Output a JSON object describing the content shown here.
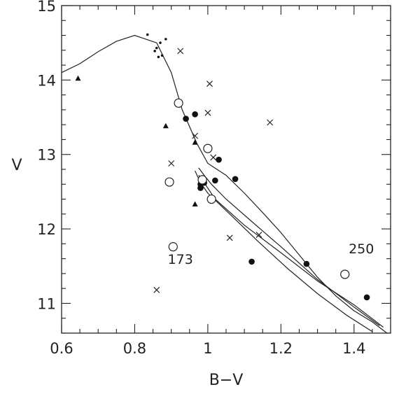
{
  "chart_data": {
    "type": "scatter",
    "xlabel": "B−V",
    "ylabel": "V",
    "xlim": [
      0.6,
      1.5
    ],
    "ylim": [
      15.0,
      10.6
    ],
    "y_inverted": true,
    "grid": false,
    "x_ticks": [
      0.6,
      0.8,
      1.0,
      1.2,
      1.4
    ],
    "x_tick_labels": [
      "0.6",
      "0.8",
      "1",
      "1.2",
      "1.4"
    ],
    "y_ticks": [
      11,
      12,
      13,
      14,
      15
    ],
    "y_tick_labels": [
      "11",
      "12",
      "13",
      "14",
      "15"
    ],
    "annotations": [
      {
        "text": "173",
        "x": 0.925,
        "y": 11.53
      },
      {
        "text": "250",
        "x": 1.42,
        "y": 11.67
      }
    ],
    "series": [
      {
        "marker": "filled-circle",
        "points": [
          [
            0.94,
            13.48
          ],
          [
            0.965,
            13.54
          ],
          [
            0.98,
            12.55
          ],
          [
            0.98,
            12.6
          ],
          [
            0.99,
            12.62
          ],
          [
            1.0,
            13.09
          ],
          [
            1.02,
            12.65
          ],
          [
            1.03,
            12.93
          ],
          [
            1.075,
            12.67
          ],
          [
            1.12,
            11.56
          ],
          [
            1.27,
            11.53
          ],
          [
            1.435,
            11.08
          ]
        ]
      },
      {
        "marker": "open-circle",
        "points": [
          [
            0.905,
            11.76
          ],
          [
            0.895,
            12.63
          ],
          [
            0.92,
            13.69
          ],
          [
            0.985,
            12.66
          ],
          [
            1.0,
            13.08
          ],
          [
            1.01,
            12.4
          ],
          [
            1.375,
            11.39
          ]
        ]
      },
      {
        "marker": "cross",
        "points": [
          [
            0.86,
            11.18
          ],
          [
            0.9,
            12.88
          ],
          [
            0.925,
            14.39
          ],
          [
            0.965,
            13.25
          ],
          [
            1.0,
            13.56
          ],
          [
            1.005,
            13.95
          ],
          [
            1.015,
            12.96
          ],
          [
            1.06,
            11.88
          ],
          [
            1.14,
            11.92
          ],
          [
            1.17,
            13.43
          ]
        ]
      },
      {
        "marker": "filled-triangle",
        "points": [
          [
            0.645,
            14.02
          ],
          [
            0.885,
            13.38
          ],
          [
            0.965,
            12.33
          ],
          [
            0.965,
            13.16
          ]
        ]
      },
      {
        "marker": "small-dot",
        "points": [
          [
            0.835,
            14.61
          ],
          [
            0.855,
            14.39
          ],
          [
            0.86,
            14.43
          ],
          [
            0.865,
            14.31
          ],
          [
            0.87,
            14.5
          ],
          [
            0.875,
            14.33
          ],
          [
            0.885,
            14.55
          ]
        ]
      }
    ],
    "isochrones": [
      {
        "points": [
          [
            0.6,
            14.1
          ],
          [
            0.65,
            14.22
          ],
          [
            0.7,
            14.38
          ],
          [
            0.75,
            14.52
          ],
          [
            0.8,
            14.6
          ],
          [
            0.86,
            14.5
          ],
          [
            0.9,
            14.1
          ],
          [
            0.93,
            13.6
          ],
          [
            0.97,
            13.15
          ],
          [
            1.0,
            12.88
          ],
          [
            1.05,
            12.72
          ],
          [
            1.1,
            12.48
          ],
          [
            1.15,
            12.22
          ],
          [
            1.2,
            11.95
          ],
          [
            1.25,
            11.65
          ],
          [
            1.3,
            11.35
          ],
          [
            1.35,
            11.1
          ],
          [
            1.4,
            10.9
          ],
          [
            1.45,
            10.75
          ],
          [
            1.49,
            10.6
          ]
        ]
      },
      {
        "points": [
          [
            0.975,
            12.72
          ],
          [
            0.99,
            12.62
          ],
          [
            1.02,
            12.4
          ],
          [
            1.1,
            12.05
          ],
          [
            1.2,
            11.68
          ],
          [
            1.3,
            11.3
          ],
          [
            1.4,
            10.98
          ],
          [
            1.48,
            10.68
          ]
        ]
      },
      {
        "points": [
          [
            0.975,
            12.82
          ],
          [
            0.99,
            12.72
          ],
          [
            1.01,
            12.6
          ],
          [
            1.05,
            12.4
          ],
          [
            1.12,
            12.1
          ],
          [
            1.2,
            11.76
          ],
          [
            1.3,
            11.32
          ],
          [
            1.4,
            10.95
          ],
          [
            1.47,
            10.7
          ]
        ]
      },
      {
        "points": [
          [
            0.965,
            12.78
          ],
          [
            0.98,
            12.62
          ],
          [
            1.0,
            12.48
          ],
          [
            1.06,
            12.2
          ],
          [
            1.14,
            11.82
          ],
          [
            1.22,
            11.46
          ],
          [
            1.3,
            11.13
          ],
          [
            1.38,
            10.84
          ],
          [
            1.45,
            10.62
          ]
        ]
      }
    ]
  }
}
